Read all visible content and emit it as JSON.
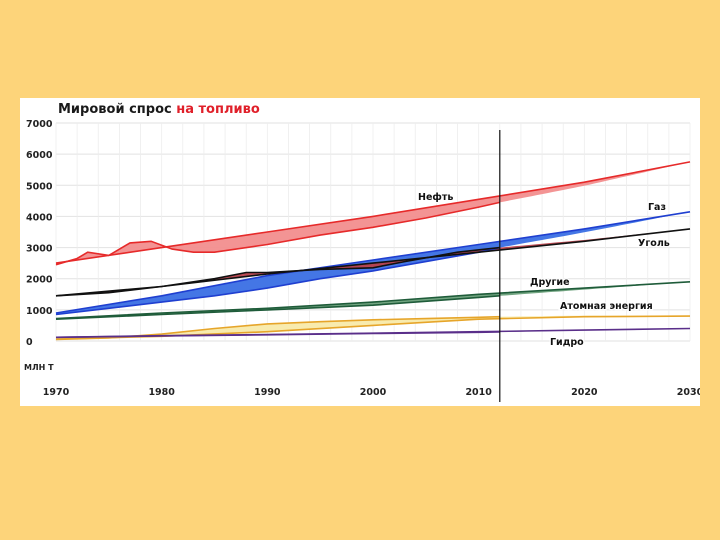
{
  "chart_data": {
    "type": "area",
    "title_part1": "Мировой спрос ",
    "title_part2": "на топливо",
    "unit_label": "МЛН Т",
    "ylim": [
      0,
      7000
    ],
    "yticks": [
      0,
      1000,
      2000,
      3000,
      4000,
      5000,
      6000,
      7000
    ],
    "xlim": [
      1970,
      2030
    ],
    "xticks": [
      1970,
      1980,
      1990,
      2000,
      2010,
      2020,
      2030
    ],
    "divider_year": 2012,
    "series": [
      {
        "name": "Нефть",
        "label": "Нефть",
        "color": "#e62a2a",
        "fill": "#f28e8e",
        "actual": [
          [
            1970,
            2450
          ],
          [
            1972,
            2650
          ],
          [
            1973,
            2850
          ],
          [
            1975,
            2750
          ],
          [
            1977,
            3150
          ],
          [
            1979,
            3200
          ],
          [
            1981,
            2950
          ],
          [
            1983,
            2850
          ],
          [
            1985,
            2850
          ],
          [
            1990,
            3100
          ],
          [
            1995,
            3400
          ],
          [
            2000,
            3650
          ],
          [
            2005,
            3950
          ],
          [
            2010,
            4300
          ],
          [
            2012,
            4450
          ]
        ],
        "projection": [
          [
            1970,
            2500
          ],
          [
            1980,
            3000
          ],
          [
            1990,
            3500
          ],
          [
            2000,
            4000
          ],
          [
            2010,
            4550
          ],
          [
            2020,
            5100
          ],
          [
            2030,
            5750
          ]
        ]
      },
      {
        "name": "Газ",
        "label": "Газ",
        "color": "#1f3fd0",
        "fill": "#3a6fe4",
        "actual": [
          [
            1970,
            850
          ],
          [
            1975,
            1050
          ],
          [
            1980,
            1250
          ],
          [
            1985,
            1450
          ],
          [
            1990,
            1700
          ],
          [
            1995,
            2000
          ],
          [
            2000,
            2250
          ],
          [
            2005,
            2550
          ],
          [
            2010,
            2850
          ],
          [
            2012,
            3000
          ]
        ],
        "projection": [
          [
            1970,
            900
          ],
          [
            1980,
            1450
          ],
          [
            1990,
            2100
          ],
          [
            2000,
            2600
          ],
          [
            2010,
            3100
          ],
          [
            2020,
            3600
          ],
          [
            2030,
            4150
          ]
        ]
      },
      {
        "name": "Уголь",
        "label": "Уголь",
        "color": "#111111",
        "fill": "#b9414b",
        "actual": [
          [
            1970,
            1450
          ],
          [
            1975,
            1550
          ],
          [
            1980,
            1750
          ],
          [
            1985,
            2000
          ],
          [
            1988,
            2200
          ],
          [
            1990,
            2200
          ],
          [
            1995,
            2300
          ],
          [
            2000,
            2350
          ],
          [
            2003,
            2550
          ],
          [
            2008,
            2850
          ],
          [
            2012,
            3000
          ]
        ],
        "projection": [
          [
            1970,
            1450
          ],
          [
            1980,
            1750
          ],
          [
            1990,
            2150
          ],
          [
            2000,
            2500
          ],
          [
            2010,
            2850
          ],
          [
            2020,
            3200
          ],
          [
            2030,
            3600
          ]
        ]
      },
      {
        "name": "Другие",
        "label": "Другие",
        "color": "#1f5c3a",
        "fill": "#6aa07a",
        "actual": [
          [
            1970,
            700
          ],
          [
            1980,
            850
          ],
          [
            1990,
            1000
          ],
          [
            2000,
            1150
          ],
          [
            2010,
            1400
          ],
          [
            2012,
            1450
          ]
        ],
        "projection": [
          [
            1970,
            720
          ],
          [
            1980,
            900
          ],
          [
            1990,
            1050
          ],
          [
            2000,
            1250
          ],
          [
            2010,
            1500
          ],
          [
            2020,
            1700
          ],
          [
            2030,
            1900
          ]
        ]
      },
      {
        "name": "Атомная энергия",
        "label": "Атомная энергия",
        "color": "#e6a52a",
        "fill": "#f8eaaa",
        "actual": [
          [
            1970,
            50
          ],
          [
            1975,
            100
          ],
          [
            1980,
            220
          ],
          [
            1985,
            400
          ],
          [
            1990,
            550
          ],
          [
            1995,
            620
          ],
          [
            2000,
            680
          ],
          [
            2005,
            720
          ],
          [
            2010,
            760
          ],
          [
            2012,
            780
          ]
        ],
        "projection": [
          [
            1970,
            60
          ],
          [
            1980,
            150
          ],
          [
            1990,
            300
          ],
          [
            2000,
            500
          ],
          [
            2010,
            700
          ],
          [
            2020,
            780
          ],
          [
            2030,
            800
          ]
        ]
      },
      {
        "name": "Гидро",
        "label": "Гидро",
        "color": "#5a2f8a",
        "fill": "#5a2f8a",
        "actual": [
          [
            1970,
            120
          ],
          [
            1980,
            160
          ],
          [
            1990,
            200
          ],
          [
            2000,
            240
          ],
          [
            2010,
            280
          ],
          [
            2012,
            290
          ]
        ],
        "projection": [
          [
            1970,
            120
          ],
          [
            1980,
            170
          ],
          [
            1990,
            210
          ],
          [
            2000,
            250
          ],
          [
            2010,
            300
          ],
          [
            2020,
            350
          ],
          [
            2030,
            400
          ]
        ]
      }
    ]
  }
}
